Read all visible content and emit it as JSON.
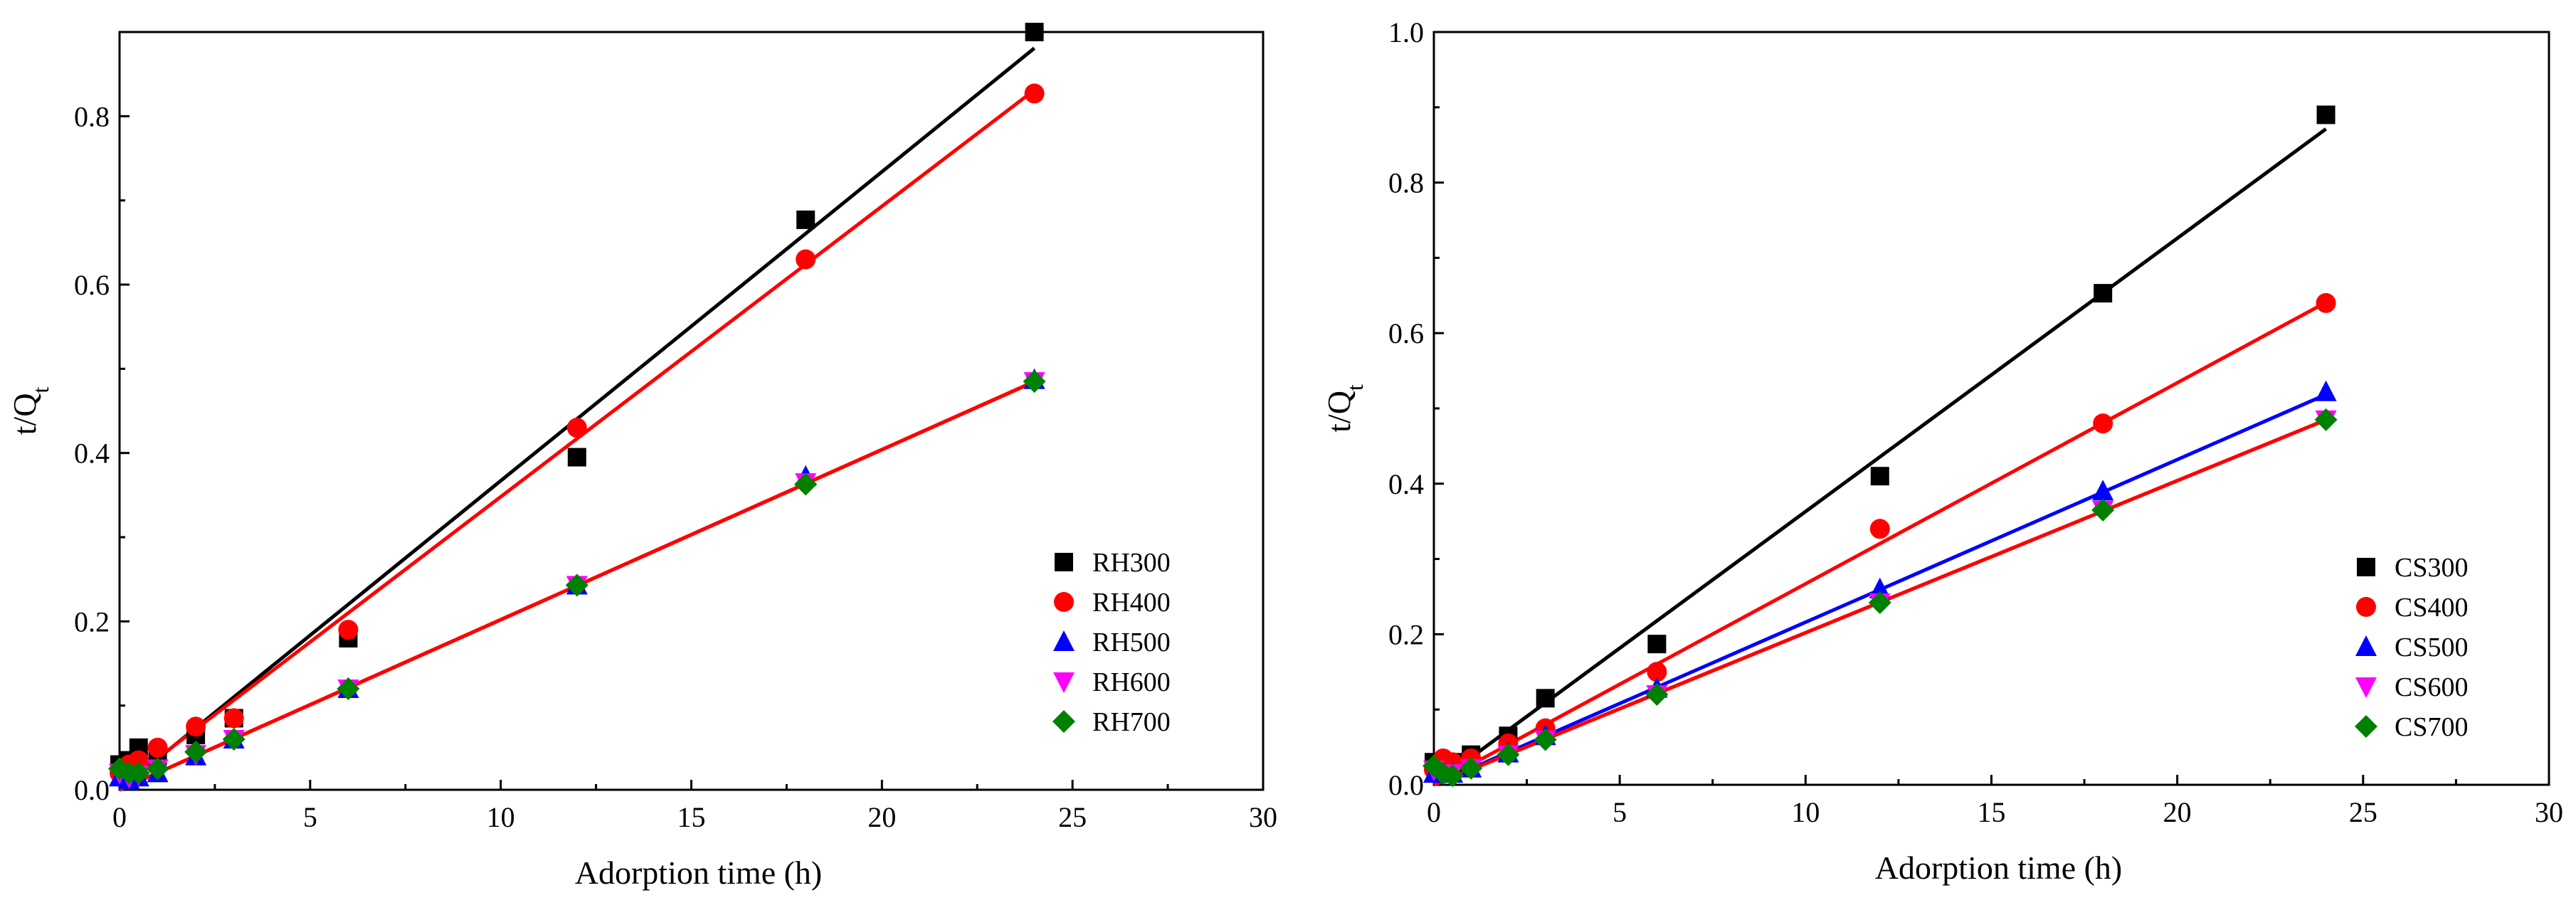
{
  "chart_data": [
    {
      "type": "scatter",
      "xlabel": "Adorption time (h)",
      "ylabel": "t/Q",
      "ylabel_sub": "t",
      "xlim": [
        0,
        30
      ],
      "ylim": [
        0,
        0.9
      ],
      "xticks": [
        0,
        5,
        10,
        15,
        20,
        25,
        30
      ],
      "xtick_labels": [
        "0",
        "5",
        "10",
        "15",
        "20",
        "25",
        "30"
      ],
      "yticks": [
        0.0,
        0.2,
        0.4,
        0.6,
        0.8
      ],
      "ytick_labels": [
        "0.0",
        "0.2",
        "0.4",
        "0.6",
        "0.8"
      ],
      "legend_position": "right",
      "series": [
        {
          "name": "RH300",
          "marker": "square",
          "color": "#000000",
          "line_color": "#000000",
          "x": [
            0,
            0.25,
            0.5,
            1,
            2,
            3,
            6,
            12,
            18,
            24
          ],
          "y": [
            0.03,
            0.035,
            0.05,
            0.04,
            0.065,
            0.085,
            0.18,
            0.395,
            0.677,
            0.9
          ],
          "fit": [
            0,
            0.0367
          ]
        },
        {
          "name": "RH400",
          "marker": "circle",
          "color": "#ff0000",
          "line_color": "#ff0000",
          "x": [
            0,
            0.25,
            0.5,
            1,
            2,
            3,
            6,
            12,
            18,
            24
          ],
          "y": [
            0.02,
            0.03,
            0.035,
            0.05,
            0.075,
            0.085,
            0.19,
            0.43,
            0.63,
            0.827
          ],
          "fit": [
            0.003,
            0.0345
          ]
        },
        {
          "name": "RH500",
          "marker": "triangle-up",
          "color": "#0000ff",
          "line_color": "#ff0000",
          "x": [
            0,
            0.25,
            0.5,
            1,
            2,
            3,
            6,
            12,
            18,
            24
          ],
          "y": [
            0.015,
            0.012,
            0.015,
            0.02,
            0.04,
            0.06,
            0.12,
            0.243,
            0.372,
            0.487
          ],
          "fit": [
            0.0,
            0.0202
          ]
        },
        {
          "name": "RH600",
          "marker": "triangle-down",
          "color": "#ff00ff",
          "line_color": "#ff0000",
          "x": [
            0,
            0.25,
            0.5,
            1,
            2,
            3,
            6,
            12,
            18,
            24
          ],
          "y": [
            0.02,
            0.015,
            0.018,
            0.025,
            0.042,
            0.06,
            0.12,
            0.243,
            0.365,
            0.485
          ],
          "fit": [
            0.0,
            0.0202
          ]
        },
        {
          "name": "RH700",
          "marker": "diamond",
          "color": "#008000",
          "line_color": "#ff0000",
          "x": [
            0,
            0.25,
            0.5,
            1,
            2,
            3,
            6,
            12,
            18,
            24
          ],
          "y": [
            0.025,
            0.02,
            0.02,
            0.025,
            0.045,
            0.06,
            0.12,
            0.243,
            0.363,
            0.485
          ],
          "fit": [
            0.0,
            0.0202
          ]
        }
      ]
    },
    {
      "type": "scatter",
      "xlabel": "Adorption time (h)",
      "ylabel": "t/Q",
      "ylabel_sub": "t",
      "xlim": [
        0,
        30
      ],
      "ylim": [
        0,
        1.0
      ],
      "xticks": [
        0,
        5,
        10,
        15,
        20,
        25,
        30
      ],
      "xtick_labels": [
        "0",
        "5",
        "10",
        "15",
        "20",
        "25",
        "30"
      ],
      "yticks": [
        0.0,
        0.2,
        0.4,
        0.6,
        0.8,
        1.0
      ],
      "ytick_labels": [
        "0.0",
        "0.2",
        "0.4",
        "0.6",
        "0.8",
        "1.0"
      ],
      "legend_position": "bottom-right",
      "series": [
        {
          "name": "CS300",
          "marker": "square",
          "color": "#000000",
          "line_color": "#000000",
          "x": [
            0,
            0.25,
            0.5,
            1,
            2,
            3,
            6,
            12,
            18,
            24
          ],
          "y": [
            0.03,
            0.03,
            0.03,
            0.04,
            0.065,
            0.115,
            0.187,
            0.41,
            0.653,
            0.89
          ],
          "fit": [
            0,
            0.0363
          ]
        },
        {
          "name": "CS400",
          "marker": "circle",
          "color": "#ff0000",
          "line_color": "#ff0000",
          "x": [
            0,
            0.25,
            0.5,
            1,
            2,
            3,
            6,
            12,
            18,
            24
          ],
          "y": [
            0.02,
            0.035,
            0.03,
            0.035,
            0.055,
            0.075,
            0.15,
            0.34,
            0.48,
            0.64
          ],
          "fit": [
            0,
            0.0267
          ]
        },
        {
          "name": "CS500",
          "marker": "triangle-up",
          "color": "#0000ff",
          "line_color": "#0000ff",
          "x": [
            0,
            0.25,
            0.5,
            1,
            2,
            3,
            6,
            12,
            18,
            24
          ],
          "y": [
            0.015,
            0.015,
            0.015,
            0.022,
            0.042,
            0.065,
            0.128,
            0.26,
            0.39,
            0.522
          ],
          "fit": [
            0,
            0.0216
          ]
        },
        {
          "name": "CS600",
          "marker": "triangle-down",
          "color": "#ff00ff",
          "line_color": "#ff0000",
          "x": [
            0,
            0.25,
            0.5,
            1,
            2,
            3,
            6,
            12,
            18,
            24
          ],
          "y": [
            0.02,
            0.015,
            0.015,
            0.022,
            0.04,
            0.06,
            0.12,
            0.242,
            0.365,
            0.485
          ],
          "fit": [
            0,
            0.0202
          ]
        },
        {
          "name": "CS700",
          "marker": "diamond",
          "color": "#008000",
          "line_color": "#ff0000",
          "x": [
            0,
            0.25,
            0.5,
            1,
            2,
            3,
            6,
            12,
            18,
            24
          ],
          "y": [
            0.025,
            0.015,
            0.012,
            0.022,
            0.04,
            0.06,
            0.12,
            0.242,
            0.365,
            0.485
          ],
          "fit": [
            0,
            0.0202
          ]
        }
      ]
    }
  ]
}
